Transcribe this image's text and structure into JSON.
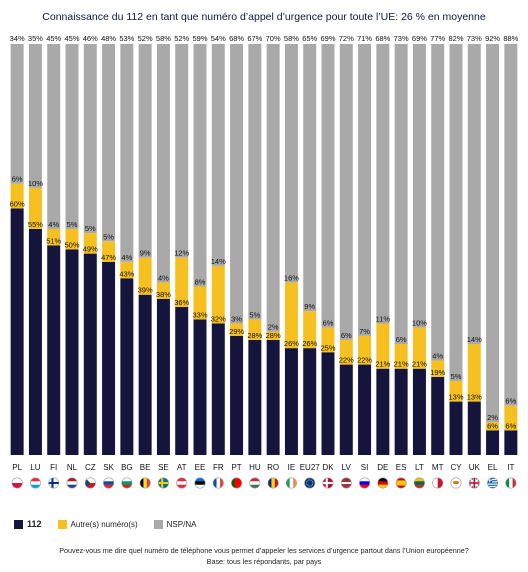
{
  "title": "Connaissance du 112 en tant que numéro d’appel d’urgence pour toute l’UE: 26 % en moyenne",
  "legend": {
    "s112": "112",
    "other": "Autre(s) numéro(s)",
    "nsp": "NSP/NA"
  },
  "colors": {
    "s112": "#14143c",
    "other": "#f5c020",
    "nsp": "#a9a9a9"
  },
  "question": "Pouvez-vous me dire quel numéro de téléphone vous permet d’appeler les services d’urgence partout dans l’Union européenne?",
  "base": "Base: tous les répondants, par pays",
  "chart_data": {
    "type": "bar",
    "stacked": true,
    "title": "Connaissance du 112 en tant que numéro d’appel d’urgence pour toute l’UE: 26 % en moyenne",
    "categories": [
      "PL",
      "LU",
      "FI",
      "NL",
      "CZ",
      "SK",
      "BG",
      "BE",
      "SE",
      "AT",
      "EE",
      "FR",
      "PT",
      "HU",
      "RO",
      "IE",
      "EU27",
      "DK",
      "LV",
      "SI",
      "DE",
      "ES",
      "LT",
      "MT",
      "CY",
      "UK",
      "EL",
      "IT"
    ],
    "series": [
      {
        "name": "112",
        "color": "#14143c",
        "label_suffix": "%",
        "values": [
          60,
          55,
          51,
          50,
          49,
          47,
          43,
          39,
          38,
          36,
          33,
          32,
          29,
          28,
          28,
          26,
          26,
          25,
          22,
          22,
          21,
          21,
          21,
          19,
          13,
          13,
          6,
          6
        ]
      },
      {
        "name": "Autre(s) numéro(s)",
        "color": "#f5c020",
        "label_suffix": "%",
        "values": [
          6,
          10,
          4,
          5,
          5,
          5,
          4,
          9,
          4,
          12,
          8,
          14,
          3,
          5,
          2,
          16,
          9,
          6,
          6,
          7,
          11,
          6,
          10,
          4,
          5,
          14,
          2,
          6
        ]
      },
      {
        "name": "NSP/NA",
        "color": "#a9a9a9",
        "label_suffix": "%",
        "values": [
          34,
          35,
          45,
          45,
          46,
          48,
          53,
          52,
          58,
          52,
          59,
          54,
          68,
          67,
          70,
          58,
          65,
          69,
          72,
          71,
          68,
          73,
          69,
          77,
          82,
          73,
          92,
          88
        ]
      }
    ],
    "ylim": [
      0,
      100
    ],
    "legend_position": "bottom-left",
    "flags": [
      "pl",
      "lu",
      "fi",
      "nl",
      "cz",
      "sk",
      "bg",
      "be",
      "se",
      "at",
      "ee",
      "fr",
      "pt",
      "hu",
      "ro",
      "ie",
      "eu",
      "dk",
      "lv",
      "si",
      "de",
      "es",
      "lt",
      "mt",
      "cy",
      "uk",
      "el",
      "it"
    ]
  }
}
